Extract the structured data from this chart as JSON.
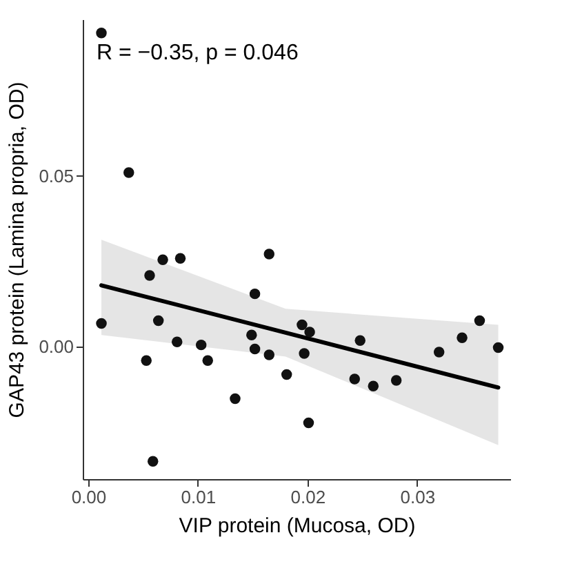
{
  "chart_data": {
    "type": "scatter",
    "xlabel": "VIP protein (Mucosa, OD)",
    "ylabel": "GAP43 protein (Lamina propria, OD)",
    "annotations": [
      "R = −0.35, p = 0.046"
    ],
    "xlim": [
      -0.0005,
      0.0385
    ],
    "ylim": [
      -0.039,
      0.096
    ],
    "xticks": [
      {
        "value": 0,
        "label": "0.00"
      },
      {
        "value": 0.01,
        "label": "0.01"
      },
      {
        "value": 0.02,
        "label": "0.02"
      },
      {
        "value": 0.03,
        "label": "0.03"
      }
    ],
    "yticks": [
      {
        "value": 0,
        "label": "0.00"
      },
      {
        "value": 0.05,
        "label": "0.05"
      }
    ],
    "grid": false,
    "marker": "circle",
    "series": [
      {
        "type": "line",
        "marker": "none",
        "color": "#000000",
        "x": [
          0.0012,
          0.018,
          0.0374
        ],
        "values": [
          0.0179,
          0.004,
          -0.0121
        ],
        "lower": [
          0.0033,
          -0.003,
          -0.029
        ],
        "upper": [
          0.0313,
          0.011,
          0.0063
        ]
      },
      {
        "color": "#111111",
        "x": [
          0.0012,
          0.0037,
          0.0012,
          0.0068,
          0.0084,
          0.0056,
          0.0165,
          0.0152,
          0.0064,
          0.0081,
          0.0103,
          0.0109,
          0.0053,
          0.0134,
          0.0059,
          0.0149,
          0.0152,
          0.0165,
          0.0181,
          0.0195,
          0.0202,
          0.0197,
          0.0201,
          0.0248,
          0.0243,
          0.026,
          0.0281,
          0.032,
          0.0341,
          0.0357,
          0.0374
        ],
        "values": [
          0.092,
          0.051,
          0.0067,
          0.0254,
          0.0258,
          0.0208,
          0.0271,
          0.0154,
          0.0075,
          0.0013,
          0.0004,
          -0.0042,
          -0.0042,
          -0.0154,
          -0.0338,
          0.0033,
          -0.0008,
          -0.0025,
          -0.0083,
          0.0063,
          0.0042,
          -0.0021,
          -0.0225,
          0.0017,
          -0.0096,
          -0.0117,
          -0.01,
          -0.0017,
          0.0025,
          0.0075,
          -0.0004
        ]
      }
    ]
  }
}
